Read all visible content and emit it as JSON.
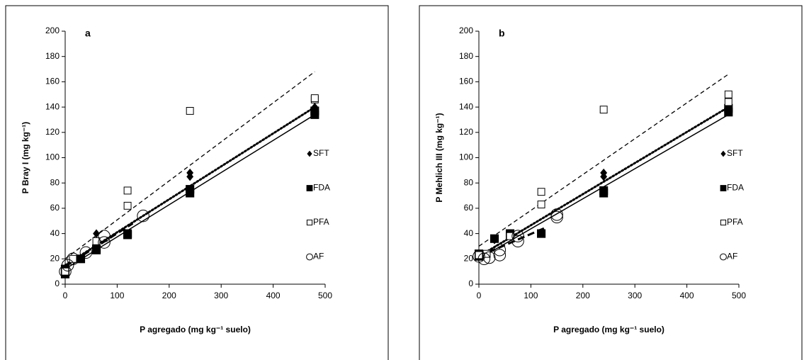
{
  "chart_data": [
    {
      "type": "scatter",
      "panel_label": "a",
      "x_label": "P agregado (mg kg⁻¹ suelo)",
      "y_label": "P Bray I  (mg kg⁻¹)",
      "xlim": [
        0,
        500
      ],
      "ylim": [
        0,
        200
      ],
      "xticks": [
        0,
        100,
        200,
        300,
        400,
        500
      ],
      "yticks": [
        0,
        20,
        40,
        60,
        80,
        100,
        120,
        140,
        160,
        180,
        200
      ],
      "legend": "right",
      "series": [
        {
          "name": "SFT",
          "marker": "diamond",
          "x": [
            0,
            0,
            30,
            60,
            60,
            240,
            240,
            480,
            480
          ],
          "values": [
            10,
            12,
            20,
            40,
            28,
            88,
            85,
            140,
            137
          ]
        },
        {
          "name": "FDA",
          "marker": "filled-square",
          "x": [
            0,
            0,
            30,
            60,
            60,
            120,
            120,
            240,
            240,
            480,
            480
          ],
          "values": [
            8,
            12,
            20,
            27,
            28,
            39,
            40,
            72,
            75,
            134,
            137
          ]
        },
        {
          "name": "PFA",
          "marker": "open-square",
          "x": [
            0,
            15,
            60,
            120,
            120,
            240,
            480,
            480
          ],
          "values": [
            10,
            20,
            34,
            62,
            74,
            137,
            146,
            147
          ]
        },
        {
          "name": "AF",
          "marker": "open-circle",
          "x": [
            0,
            5,
            15,
            40,
            75,
            75,
            150
          ],
          "values": [
            10,
            15,
            20,
            25,
            33,
            38,
            54
          ]
        }
      ],
      "fits": [
        {
          "style": "dashed",
          "x": [
            0,
            480
          ],
          "values": [
            20,
            168
          ]
        },
        {
          "style": "dotted",
          "x": [
            0,
            480
          ],
          "values": [
            15,
            140
          ]
        },
        {
          "style": "solid",
          "x": [
            0,
            480
          ],
          "values": [
            12,
            134
          ]
        },
        {
          "style": "thick-dash",
          "x": [
            0,
            130
          ],
          "values": [
            14,
            48
          ]
        }
      ]
    },
    {
      "type": "scatter",
      "panel_label": "b",
      "x_label": "P agregado (mg kg⁻¹ suelo)",
      "y_label": "P Mehlich III  (mg kg⁻¹)",
      "xlim": [
        0,
        500
      ],
      "ylim": [
        0,
        200
      ],
      "xticks": [
        0,
        100,
        200,
        300,
        400,
        500
      ],
      "yticks": [
        0,
        20,
        40,
        60,
        80,
        100,
        120,
        140,
        160,
        180,
        200
      ],
      "legend": "right",
      "series": [
        {
          "name": "SFT",
          "marker": "diamond",
          "x": [
            0,
            0,
            30,
            60,
            240,
            240,
            480,
            480
          ],
          "values": [
            22,
            24,
            35,
            40,
            88,
            85,
            142,
            140
          ]
        },
        {
          "name": "FDA",
          "marker": "filled-square",
          "x": [
            0,
            0,
            30,
            60,
            60,
            120,
            240,
            240,
            480,
            480
          ],
          "values": [
            22,
            24,
            36,
            39,
            40,
            40,
            72,
            74,
            136,
            139
          ]
        },
        {
          "name": "PFA",
          "marker": "open-square",
          "x": [
            0,
            15,
            60,
            120,
            120,
            240,
            480,
            480
          ],
          "values": [
            23,
            24,
            38,
            63,
            73,
            138,
            150,
            144
          ]
        },
        {
          "name": "AF",
          "marker": "open-circle",
          "x": [
            0,
            10,
            20,
            40,
            40,
            75,
            75,
            150,
            150
          ],
          "values": [
            22,
            20,
            21,
            23,
            27,
            34,
            38,
            53,
            55
          ]
        }
      ],
      "fits": [
        {
          "style": "dashed",
          "x": [
            0,
            480
          ],
          "values": [
            30,
            166
          ]
        },
        {
          "style": "dotted",
          "x": [
            0,
            480
          ],
          "values": [
            22,
            140
          ]
        },
        {
          "style": "solid",
          "x": [
            0,
            480
          ],
          "values": [
            20,
            134
          ]
        },
        {
          "style": "thick-dash",
          "x": [
            0,
            130
          ],
          "values": [
            22,
            45
          ]
        }
      ]
    }
  ]
}
